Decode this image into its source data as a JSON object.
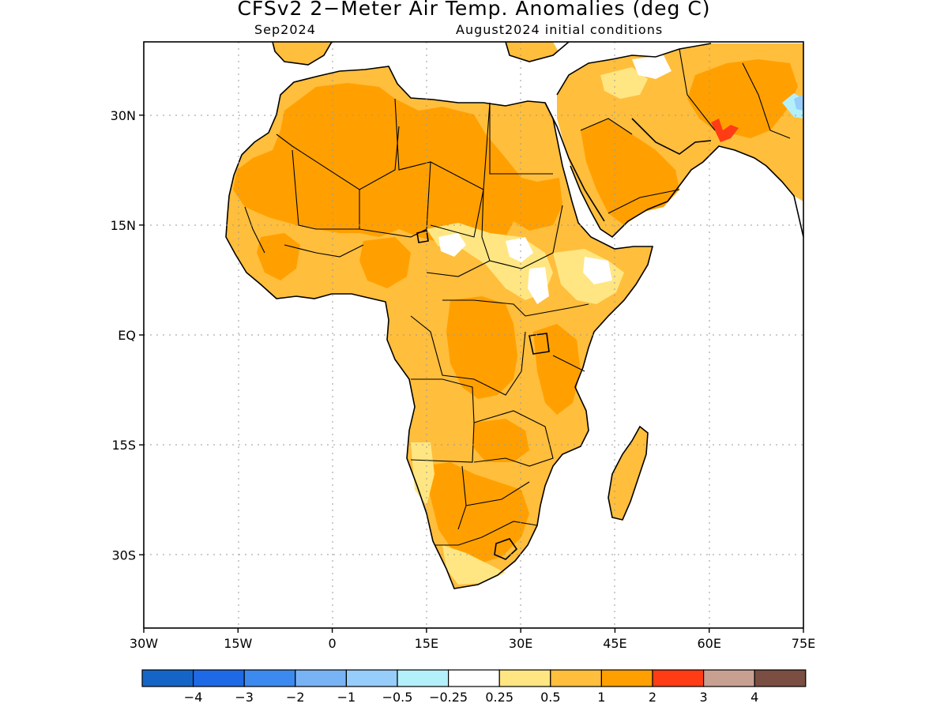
{
  "title": "CFSv2 2−Meter Air Temp. Anomalies (deg C)",
  "valid_month": "Sep2024",
  "init_conditions": "August2024 initial conditions",
  "lat_ticks": [
    {
      "lat": 30,
      "label": "30N"
    },
    {
      "lat": 15,
      "label": "15N"
    },
    {
      "lat": 0,
      "label": "EQ"
    },
    {
      "lat": -15,
      "label": "15S"
    },
    {
      "lat": -30,
      "label": "30S"
    }
  ],
  "lon_ticks": [
    {
      "lon": -30,
      "label": "30W"
    },
    {
      "lon": -15,
      "label": "15W"
    },
    {
      "lon": 0,
      "label": "0"
    },
    {
      "lon": 15,
      "label": "15E"
    },
    {
      "lon": 30,
      "label": "30E"
    },
    {
      "lon": 45,
      "label": "45E"
    },
    {
      "lon": 60,
      "label": "60E"
    },
    {
      "lon": 75,
      "label": "75E"
    }
  ],
  "map_extent": {
    "lon_min": -30,
    "lon_max": 75,
    "lat_min": -40,
    "lat_max": 40
  },
  "colorbar": {
    "colors": [
      "#1565c8",
      "#1e6ae6",
      "#3c8af0",
      "#78b4f5",
      "#96cdfa",
      "#b4f0fa",
      "#ffffff",
      "#ffe682",
      "#ffbe3c",
      "#ffa000",
      "#ff3c14",
      "#c8a092",
      "#7a4e42"
    ],
    "labels": [
      "−4",
      "−3",
      "−2",
      "−1",
      "−0.5",
      "−0.25",
      "0.25",
      "0.5",
      "1",
      "2",
      "3",
      "4"
    ]
  },
  "anomaly_colors": {
    "pale": "#ffe682",
    "light_orange": "#ffbe3c",
    "orange": "#ffa000",
    "red": "#ff3c14",
    "light_blue": "#b4f0fa"
  }
}
